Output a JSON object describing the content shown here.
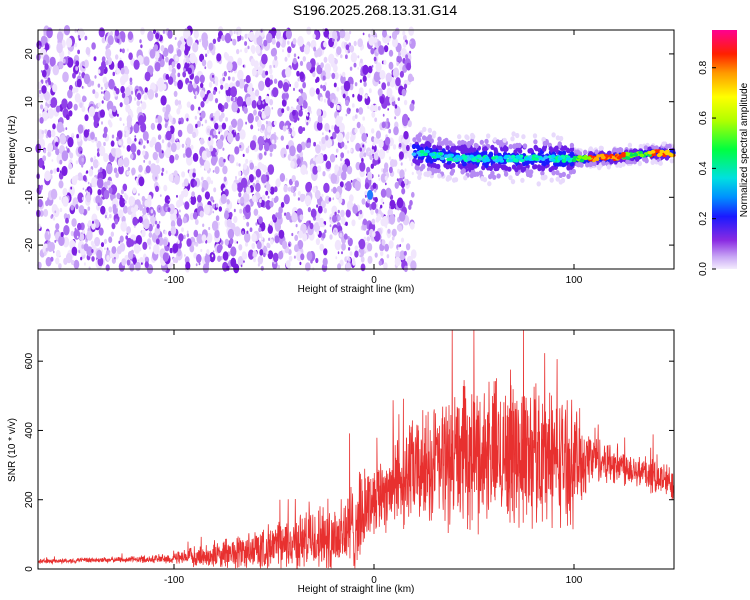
{
  "title": "S196.2025.268.13.31.G14",
  "chart_data": [
    {
      "type": "heatmap",
      "name": "spectrogram",
      "xlabel": "Height of straight line (km)",
      "ylabel": "Frequency (Hz)",
      "xlim": [
        -168,
        150
      ],
      "ylim": [
        -25,
        25
      ],
      "xticks": [
        -100,
        0,
        100
      ],
      "yticks": [
        -20,
        -10,
        0,
        10,
        20
      ],
      "noise_region_x": [
        -168,
        20
      ],
      "signal_track": {
        "x": [
          20,
          40,
          60,
          80,
          100,
          120,
          140,
          150
        ],
        "freq_hz": [
          -0.5,
          -1.8,
          -2.0,
          -1.8,
          -2.0,
          -1.6,
          -0.8,
          -0.8
        ]
      },
      "colorbar": {
        "label": "Normalized spectral amplitude",
        "range": [
          0,
          0.95
        ],
        "ticks": [
          0.0,
          0.2,
          0.4,
          0.6,
          0.8
        ]
      }
    },
    {
      "type": "line",
      "name": "snr",
      "xlabel": "Height of straight line (km)",
      "ylabel": "SNR (10 * v/v)",
      "xlim": [
        -168,
        150
      ],
      "ylim": [
        0,
        690
      ],
      "xticks": [
        -100,
        0,
        100
      ],
      "yticks": [
        0,
        200,
        400,
        600
      ],
      "color": "#e8302f",
      "envelope": {
        "x": [
          -168,
          -120,
          -100,
          -80,
          -60,
          -40,
          -20,
          -10,
          0,
          20,
          40,
          60,
          80,
          100,
          110,
          130,
          150
        ],
        "baseline": [
          22,
          28,
          30,
          40,
          55,
          75,
          95,
          120,
          210,
          280,
          320,
          340,
          340,
          310,
          320,
          290,
          245
        ],
        "amplitude": [
          8,
          10,
          20,
          45,
          70,
          90,
          130,
          160,
          120,
          180,
          230,
          250,
          260,
          200,
          80,
          60,
          60
        ]
      }
    }
  ]
}
